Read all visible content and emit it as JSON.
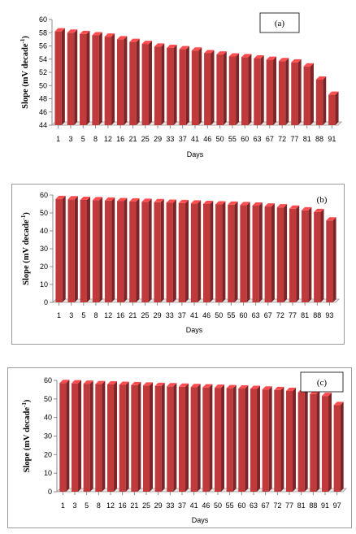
{
  "chart_data": [
    {
      "type": "bar",
      "panel_label": "(a)",
      "xlabel": "Days",
      "ylabel": "Slope (mV decade",
      "ylabel_sup": "-1",
      "ylabel_end": ")",
      "ylim": [
        44,
        60
      ],
      "yticks": [
        44,
        46,
        48,
        50,
        52,
        54,
        56,
        58,
        60
      ],
      "categories": [
        "1",
        "3",
        "5",
        "8",
        "12",
        "16",
        "21",
        "25",
        "29",
        "33",
        "37",
        "41",
        "46",
        "50",
        "55",
        "60",
        "63",
        "67",
        "72",
        "77",
        "81",
        "88",
        "91"
      ],
      "values": [
        58.2,
        58.0,
        57.8,
        57.6,
        57.4,
        57.0,
        56.6,
        56.3,
        55.9,
        55.7,
        55.5,
        55.3,
        54.9,
        54.7,
        54.4,
        54.3,
        54.1,
        53.9,
        53.7,
        53.5,
        52.9,
        50.9,
        48.6
      ],
      "bar_color": "#c0393b",
      "legend_box": true
    },
    {
      "type": "bar",
      "panel_label": "(b)",
      "xlabel": "Days",
      "ylabel": "Slope (mV decade",
      "ylabel_sup": "-1",
      "ylabel_end": ")",
      "ylim": [
        0,
        60
      ],
      "yticks": [
        0,
        10,
        20,
        30,
        40,
        50,
        60
      ],
      "categories": [
        "1",
        "3",
        "5",
        "8",
        "12",
        "16",
        "21",
        "25",
        "29",
        "33",
        "37",
        "41",
        "46",
        "50",
        "55",
        "60",
        "63",
        "67",
        "72",
        "77",
        "81",
        "88",
        "93"
      ],
      "values": [
        57.8,
        57.6,
        57.3,
        57.1,
        56.9,
        56.6,
        56.4,
        56.2,
        56.0,
        55.7,
        55.5,
        55.3,
        55.0,
        54.8,
        54.6,
        54.4,
        54.1,
        53.6,
        53.1,
        52.4,
        51.4,
        50.5,
        45.8
      ],
      "bar_color": "#c0393b",
      "legend_box": false
    },
    {
      "type": "bar",
      "panel_label": "(c)",
      "xlabel": "Days",
      "ylabel": "Slope (mV decade",
      "ylabel_sup": "-1",
      "ylabel_end": ")",
      "ylim": [
        0,
        60
      ],
      "yticks": [
        0,
        10,
        20,
        30,
        40,
        50,
        60
      ],
      "categories": [
        "1",
        "3",
        "5",
        "8",
        "12",
        "16",
        "21",
        "25",
        "29",
        "33",
        "37",
        "41",
        "46",
        "50",
        "55",
        "60",
        "63",
        "67",
        "72",
        "77",
        "81",
        "88",
        "91",
        "97"
      ],
      "values": [
        58.6,
        58.4,
        58.2,
        58.0,
        57.8,
        57.6,
        57.4,
        57.2,
        57.0,
        56.8,
        56.6,
        56.4,
        56.2,
        56.0,
        55.8,
        55.6,
        55.4,
        55.1,
        54.8,
        54.3,
        53.6,
        52.7,
        51.6,
        46.7
      ],
      "bar_color": "#c0393b",
      "legend_box": true
    }
  ]
}
